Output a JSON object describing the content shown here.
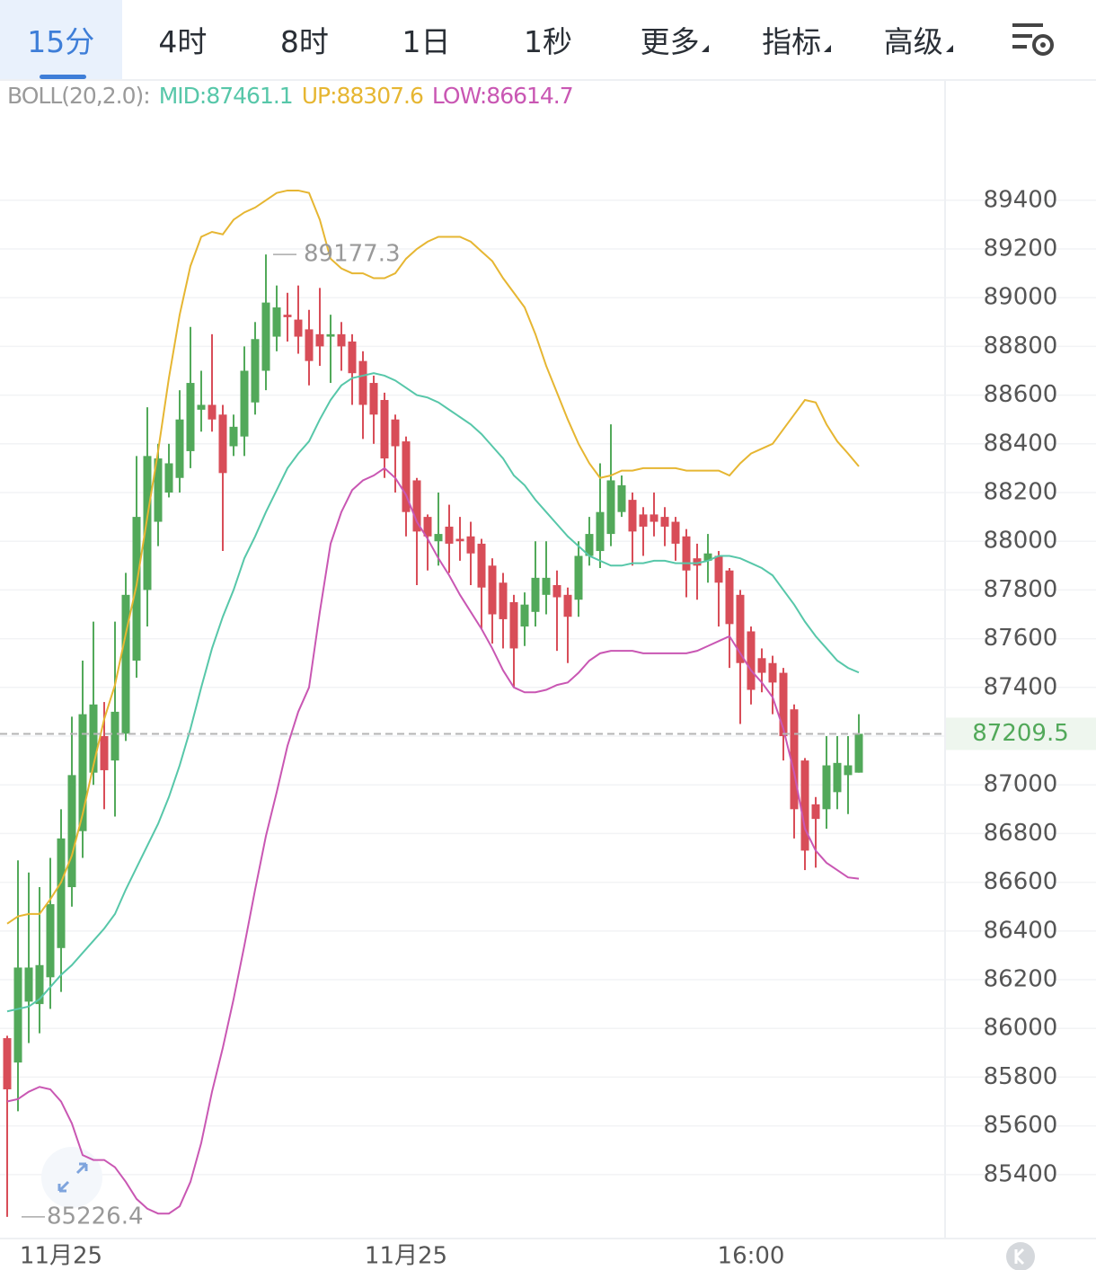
{
  "toolbar": {
    "tabs": [
      "15分",
      "4时",
      "8时",
      "1日",
      "1秒",
      "更多",
      "指标",
      "高级"
    ]
  },
  "chart_data": {
    "type": "candlestick",
    "indicator_label": "BOLL(20,2.0):",
    "categories": [
      null,
      null,
      null,
      null,
      null,
      "11月25",
      null,
      null,
      null,
      null,
      null,
      null,
      null,
      null,
      null,
      null,
      null,
      null,
      null,
      null,
      null,
      null,
      null,
      null,
      null,
      null,
      null,
      null,
      null,
      null,
      null,
      null,
      null,
      null,
      null,
      null,
      null,
      "11月25",
      null,
      null,
      null,
      null,
      null,
      null,
      null,
      null,
      null,
      null,
      null,
      null,
      null,
      null,
      null,
      null,
      null,
      null,
      null,
      null,
      null,
      null,
      null,
      null,
      null,
      null,
      null,
      null,
      null,
      null,
      null,
      "16:00",
      null,
      null,
      null,
      null,
      null,
      null,
      null,
      null,
      null,
      null
    ],
    "up_color": "#52a95a",
    "down_color": "#d84d58",
    "open": [
      85960,
      85860,
      86110,
      86100,
      86210,
      86330,
      86580,
      86810,
      87050,
      87200,
      87100,
      87210,
      87510,
      87800,
      88080,
      88200,
      88260,
      88370,
      88540,
      88560,
      88520,
      88390,
      88430,
      88570,
      88700,
      88840,
      88930,
      88910,
      88870,
      88850,
      88840,
      88850,
      88820,
      88740,
      88650,
      88580,
      88500,
      88410,
      88250,
      88100,
      88000,
      88060,
      88010,
      88020,
      87990,
      87900,
      87830,
      87750,
      87650,
      87710,
      87780,
      87820,
      87780,
      87760,
      87940,
      87960,
      88030,
      88120,
      88170,
      88110,
      88110,
      88100,
      88080,
      88020,
      87930,
      87920,
      87940,
      87880,
      87780,
      87630,
      87520,
      87500,
      87460,
      87310,
      87100,
      86920,
      86900,
      86970,
      87040,
      87050
    ],
    "high": [
      85970,
      86690,
      86640,
      86580,
      86700,
      86900,
      87280,
      87510,
      87670,
      87340,
      87670,
      87870,
      88350,
      88550,
      88400,
      88400,
      88620,
      88880,
      88700,
      88850,
      88560,
      88520,
      88800,
      88900,
      89177.3,
      89050,
      89020,
      89050,
      88950,
      89040,
      88930,
      88900,
      88850,
      88780,
      88680,
      88610,
      88520,
      88430,
      88260,
      88110,
      88200,
      88150,
      88100,
      88080,
      88010,
      87930,
      87870,
      87780,
      87790,
      88000,
      88000,
      87880,
      87810,
      88000,
      88100,
      88320,
      88480,
      88270,
      88200,
      88140,
      88200,
      88140,
      88100,
      88050,
      87990,
      88030,
      87960,
      87890,
      87800,
      87650,
      87560,
      87530,
      87480,
      87330,
      87110,
      86950,
      87200,
      87200,
      87200,
      87290
    ],
    "low": [
      85226.4,
      85660,
      85940,
      85980,
      86080,
      86150,
      86500,
      86700,
      87000,
      86900,
      86870,
      87180,
      87440,
      87650,
      87980,
      88180,
      88200,
      88300,
      88450,
      88450,
      87960,
      88350,
      88350,
      88520,
      88620,
      88780,
      88820,
      88770,
      88640,
      88720,
      88650,
      88700,
      88560,
      88420,
      88400,
      88260,
      88200,
      88020,
      87820,
      87880,
      87900,
      87870,
      87920,
      87820,
      87640,
      87580,
      87560,
      87400,
      87570,
      87650,
      87700,
      87550,
      87500,
      87690,
      87900,
      87890,
      87980,
      88100,
      87900,
      87940,
      88020,
      87980,
      87920,
      87770,
      87760,
      87830,
      87650,
      87480,
      87250,
      87330,
      87380,
      87290,
      87100,
      86780,
      86650,
      86660,
      86820,
      86900,
      86880,
      87050
    ],
    "close": [
      85750,
      86250,
      86250,
      86260,
      86510,
      86780,
      87040,
      87290,
      87330,
      87060,
      87300,
      87780,
      88100,
      88350,
      88340,
      88320,
      88500,
      88650,
      88560,
      88500,
      88280,
      88470,
      88700,
      88830,
      88980,
      88960,
      88920,
      88840,
      88740,
      88800,
      88850,
      88800,
      88690,
      88560,
      88520,
      88340,
      88390,
      88120,
      88040,
      88020,
      88030,
      87990,
      88000,
      87950,
      87810,
      87700,
      87680,
      87560,
      87740,
      87850,
      87850,
      87770,
      87690,
      87940,
      88030,
      88120,
      88250,
      88230,
      88040,
      88060,
      88080,
      88060,
      87990,
      87880,
      87900,
      87950,
      87830,
      87660,
      87500,
      87390,
      87460,
      87420,
      87200,
      86900,
      86730,
      86860,
      87080,
      87090,
      87080,
      87209.5
    ],
    "series": [
      {
        "name": "MID:87461.1",
        "color": "#57c7a9",
        "values": [
          86070,
          86080,
          86090,
          86120,
          86170,
          86220,
          86260,
          86310,
          86360,
          86410,
          86470,
          86570,
          86660,
          86750,
          86840,
          86950,
          87080,
          87230,
          87400,
          87560,
          87690,
          87800,
          87930,
          88020,
          88120,
          88210,
          88300,
          88360,
          88410,
          88500,
          88580,
          88640,
          88670,
          88680,
          88690,
          88680,
          88660,
          88630,
          88600,
          88590,
          88570,
          88540,
          88510,
          88480,
          88440,
          88390,
          88340,
          88270,
          88230,
          88170,
          88120,
          88070,
          88020,
          87980,
          87940,
          87920,
          87900,
          87900,
          87910,
          87910,
          87920,
          87920,
          87910,
          87910,
          87910,
          87920,
          87940,
          87940,
          87930,
          87910,
          87890,
          87860,
          87800,
          87740,
          87670,
          87610,
          87560,
          87510,
          87480,
          87461.1
        ]
      },
      {
        "name": "UP:88307.6",
        "color": "#e6b632",
        "values": [
          86430,
          86460,
          86470,
          86470,
          86530,
          86600,
          86710,
          86880,
          87080,
          87270,
          87410,
          87620,
          87820,
          88100,
          88370,
          88670,
          88930,
          89130,
          89250,
          89270,
          89260,
          89320,
          89350,
          89370,
          89400,
          89430,
          89440,
          89440,
          89430,
          89320,
          89160,
          89120,
          89100,
          89100,
          89080,
          89080,
          89100,
          89160,
          89200,
          89230,
          89250,
          89250,
          89250,
          89230,
          89190,
          89150,
          89080,
          89020,
          88960,
          88850,
          88720,
          88610,
          88500,
          88400,
          88320,
          88260,
          88270,
          88290,
          88290,
          88300,
          88300,
          88300,
          88300,
          88290,
          88290,
          88290,
          88290,
          88270,
          88320,
          88360,
          88380,
          88400,
          88460,
          88520,
          88580,
          88570,
          88480,
          88410,
          88360,
          88307.6
        ]
      },
      {
        "name": "LOW:86614.7",
        "color": "#c957b3",
        "values": [
          85700,
          85710,
          85740,
          85760,
          85750,
          85700,
          85610,
          85480,
          85460,
          85460,
          85430,
          85370,
          85300,
          85260,
          85240,
          85240,
          85270,
          85370,
          85530,
          85740,
          85920,
          86120,
          86340,
          86570,
          86790,
          86970,
          87160,
          87300,
          87400,
          87710,
          87990,
          88120,
          88210,
          88250,
          88270,
          88300,
          88260,
          88190,
          88080,
          88010,
          87930,
          87860,
          87780,
          87710,
          87640,
          87560,
          87470,
          87400,
          87380,
          87380,
          87390,
          87410,
          87420,
          87460,
          87510,
          87540,
          87550,
          87550,
          87550,
          87540,
          87540,
          87540,
          87540,
          87540,
          87550,
          87570,
          87590,
          87610,
          87540,
          87470,
          87420,
          87360,
          87230,
          87050,
          86820,
          86730,
          86680,
          86650,
          86620,
          86614.7
        ]
      }
    ],
    "high_marker": 89177.3,
    "low_marker": 85226.4,
    "last_price": 87209.5,
    "ylim": [
      85130,
      89890
    ],
    "yticks": [
      89400,
      89200,
      89000,
      88800,
      88600,
      88400,
      88200,
      88000,
      87800,
      87600,
      87400,
      87200,
      87000,
      86800,
      86600,
      86400,
      86200,
      86000,
      85800,
      85600,
      85400
    ],
    "grid": true
  }
}
